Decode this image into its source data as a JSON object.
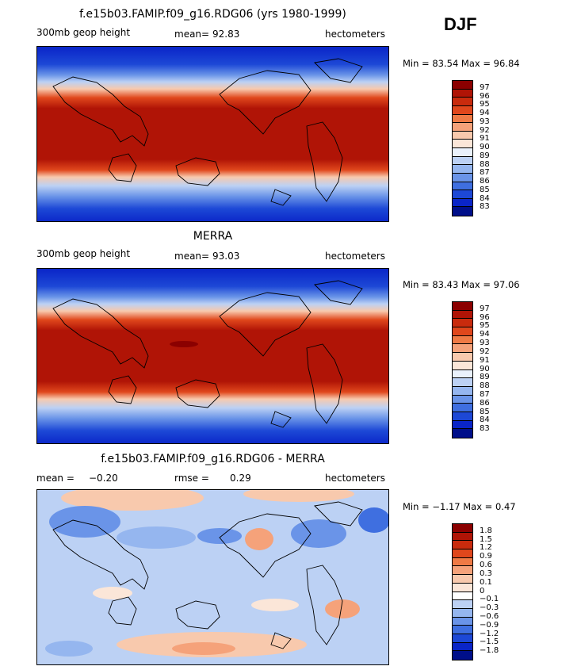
{
  "season": "DJF",
  "panels": [
    {
      "title": "f.e15b03.FAMIP.f09_g16.RDG06 (yrs 1980-1999)",
      "left_label": "300mb geop height",
      "stat1_label": "mean=",
      "stat1_value": "92.83",
      "stat2_label": "",
      "stat2_value": "",
      "units": "hectometers",
      "minmax": "Min =  83.54 Max =  96.84",
      "colorbar": {
        "labels": [
          "97",
          "96",
          "95",
          "94",
          "93",
          "92",
          "91",
          "90",
          "89",
          "88",
          "87",
          "86",
          "85",
          "84",
          "83"
        ],
        "colors": [
          "#8b0000",
          "#b01406",
          "#c92b0d",
          "#e0471c",
          "#ef7a45",
          "#f5a27a",
          "#f8c9ad",
          "#fbe6d8",
          "#eaf1fb",
          "#bcd1f4",
          "#95b6ef",
          "#6a94e8",
          "#3f6fe0",
          "#1d48d6",
          "#0a25c8",
          "#000f8a"
        ]
      }
    },
    {
      "title": "MERRA",
      "left_label": "300mb geop height",
      "stat1_label": "mean=",
      "stat1_value": "93.03",
      "stat2_label": "",
      "stat2_value": "",
      "units": "hectometers",
      "minmax": "Min =  83.43 Max =  97.06",
      "colorbar": {
        "labels": [
          "97",
          "96",
          "95",
          "94",
          "93",
          "92",
          "91",
          "90",
          "89",
          "88",
          "87",
          "86",
          "85",
          "84",
          "83"
        ],
        "colors": [
          "#8b0000",
          "#b01406",
          "#c92b0d",
          "#e0471c",
          "#ef7a45",
          "#f5a27a",
          "#f8c9ad",
          "#fbe6d8",
          "#eaf1fb",
          "#bcd1f4",
          "#95b6ef",
          "#6a94e8",
          "#3f6fe0",
          "#1d48d6",
          "#0a25c8",
          "#000f8a"
        ]
      }
    },
    {
      "title": "f.e15b03.FAMIP.f09_g16.RDG06 - MERRA",
      "left_label": "",
      "stat1_label": "mean =",
      "stat1_value": "−0.20",
      "stat2_label": "rmse =",
      "stat2_value": "0.29",
      "units": "hectometers",
      "minmax": "Min =  −1.17 Max =   0.47",
      "colorbar": {
        "labels": [
          "1.8",
          "1.5",
          "1.2",
          "0.9",
          "0.6",
          "0.3",
          "0.1",
          "0",
          "−0.1",
          "−0.3",
          "−0.6",
          "−0.9",
          "−1.2",
          "−1.5",
          "−1.8"
        ],
        "colors": [
          "#8b0000",
          "#b01406",
          "#c92b0d",
          "#e0471c",
          "#ef7a45",
          "#f5a27a",
          "#f8c9ad",
          "#fbe6d8",
          "#ffffff",
          "#bcd1f4",
          "#95b6ef",
          "#6a94e8",
          "#3f6fe0",
          "#1d48d6",
          "#0a25c8",
          "#000f8a"
        ]
      }
    }
  ],
  "chart_data": [
    {
      "type": "heatmap",
      "title": "f.e15b03.FAMIP.f09_g16.RDG06 (yrs 1980-1999)",
      "variable": "300mb geop height",
      "units": "hectometers",
      "mean": 92.83,
      "min": 83.54,
      "max": 96.84,
      "contour_levels": [
        83,
        84,
        85,
        86,
        87,
        88,
        89,
        90,
        91,
        92,
        93,
        94,
        95,
        96,
        97
      ],
      "x_range": [
        0,
        360
      ],
      "y_range": [
        -90,
        90
      ]
    },
    {
      "type": "heatmap",
      "title": "MERRA",
      "variable": "300mb geop height",
      "units": "hectometers",
      "mean": 93.03,
      "min": 83.43,
      "max": 97.06,
      "contour_levels": [
        83,
        84,
        85,
        86,
        87,
        88,
        89,
        90,
        91,
        92,
        93,
        94,
        95,
        96,
        97
      ],
      "x_range": [
        0,
        360
      ],
      "y_range": [
        -90,
        90
      ]
    },
    {
      "type": "heatmap",
      "title": "f.e15b03.FAMIP.f09_g16.RDG06 - MERRA",
      "units": "hectometers",
      "mean": -0.2,
      "rmse": 0.29,
      "min": -1.17,
      "max": 0.47,
      "contour_levels": [
        -1.8,
        -1.5,
        -1.2,
        -0.9,
        -0.6,
        -0.3,
        -0.1,
        0,
        0.1,
        0.3,
        0.6,
        0.9,
        1.2,
        1.5,
        1.8
      ],
      "x_range": [
        0,
        360
      ],
      "y_range": [
        -90,
        90
      ]
    }
  ]
}
